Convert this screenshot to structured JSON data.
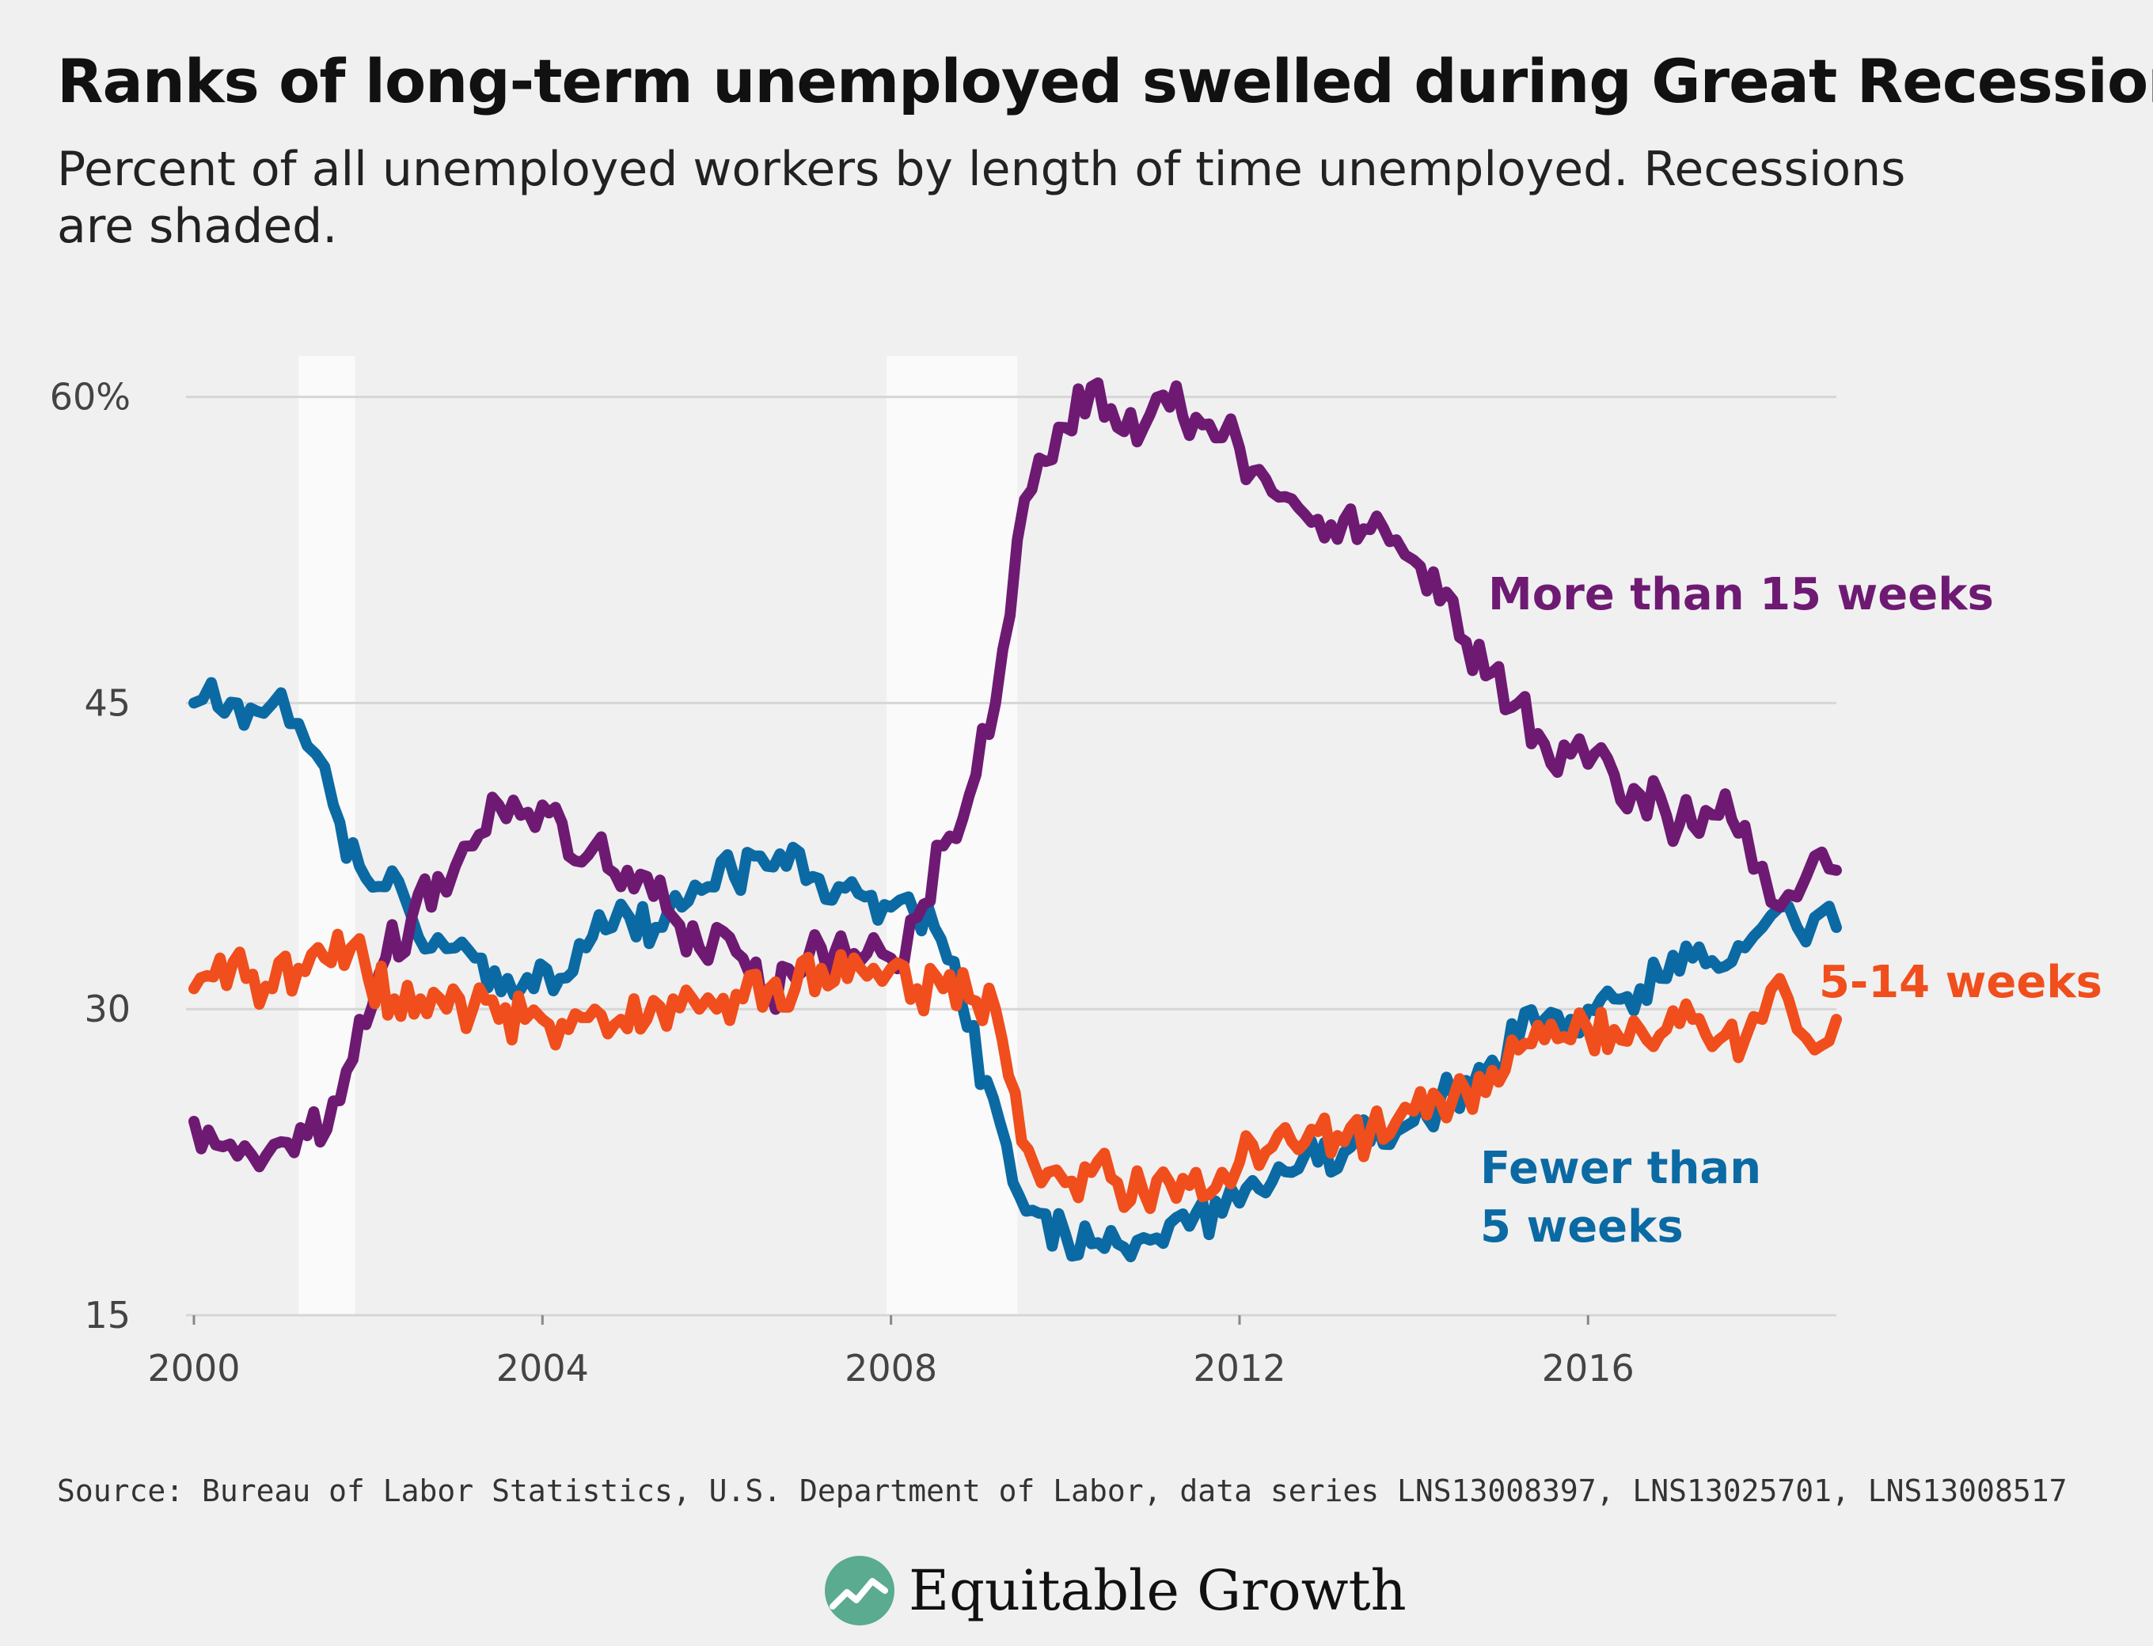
{
  "chart_data": {
    "type": "line",
    "title": "Ranks of long-term unemployed swelled during Great Recession",
    "subtitle": "Percent of all unemployed workers by length of time unemployed. Recessions are shaded.",
    "x_ticks": [
      "2000",
      "2004",
      "2008",
      "2012",
      "2016"
    ],
    "y_ticks": [
      "60%",
      "45",
      "30",
      "15"
    ],
    "y_tick_values": [
      60,
      45,
      30,
      15
    ],
    "xlim": [
      2000,
      2018.85
    ],
    "ylim": [
      15,
      62
    ],
    "grid": true,
    "recessions": [
      [
        2001.2,
        2001.85
      ],
      [
        2007.95,
        2009.45
      ]
    ],
    "series": [
      {
        "name": "More than 15 weeks",
        "label_lines": [
          "More than 15 weeks"
        ],
        "color": "#6e1a73",
        "x": [
          2000.0,
          2000.5,
          2001.0,
          2001.3,
          2001.6,
          2001.9,
          2002.2,
          2002.5,
          2002.8,
          2003.0,
          2003.2,
          2003.5,
          2003.75,
          2004.0,
          2004.3,
          2004.6,
          2004.9,
          2005.2,
          2005.5,
          2005.8,
          2006.0,
          2006.3,
          2006.6,
          2006.9,
          2007.2,
          2007.5,
          2007.8,
          2008.0,
          2008.3,
          2008.6,
          2008.9,
          2009.2,
          2009.45,
          2009.7,
          2010.0,
          2010.3,
          2010.6,
          2010.9,
          2011.2,
          2011.5,
          2011.8,
          2012.0,
          2012.3,
          2012.6,
          2012.9,
          2013.2,
          2013.5,
          2013.8,
          2014.0,
          2014.3,
          2014.6,
          2014.9,
          2015.2,
          2015.5,
          2015.8,
          2016.0,
          2016.3,
          2016.6,
          2016.9,
          2017.2,
          2017.5,
          2017.8,
          2018.0,
          2018.2,
          2018.4,
          2018.6,
          2018.85
        ],
        "values": [
          24.5,
          22.8,
          23.5,
          23.8,
          25.5,
          29.5,
          32.5,
          34.5,
          36.5,
          37.0,
          38.0,
          40.0,
          39.5,
          40.0,
          37.5,
          38.0,
          36.0,
          36.5,
          34.5,
          33.0,
          34.0,
          32.5,
          31.0,
          31.5,
          33.0,
          32.5,
          33.5,
          32.5,
          34.5,
          38.0,
          40.5,
          45.0,
          53.0,
          57.0,
          58.5,
          60.5,
          58.5,
          58.5,
          59.5,
          59.0,
          58.0,
          57.5,
          56.0,
          55.0,
          54.0,
          54.0,
          53.5,
          53.0,
          52.0,
          50.0,
          48.0,
          46.5,
          45.0,
          43.0,
          42.5,
          42.0,
          41.5,
          40.5,
          39.5,
          39.0,
          39.5,
          39.0,
          37.0,
          35.0,
          35.5,
          37.5,
          36.8
        ]
      },
      {
        "name": "5-14 weeks",
        "label_lines": [
          "5-14 weeks"
        ],
        "color": "#f04e1c",
        "x": [
          2000.0,
          2000.3,
          2000.6,
          2000.9,
          2001.2,
          2001.5,
          2001.8,
          2002.0,
          2002.3,
          2002.6,
          2002.9,
          2003.2,
          2003.5,
          2003.8,
          2004.0,
          2004.3,
          2004.6,
          2004.9,
          2005.2,
          2005.5,
          2005.8,
          2006.0,
          2006.3,
          2006.6,
          2006.9,
          2007.2,
          2007.5,
          2007.8,
          2008.0,
          2008.3,
          2008.6,
          2008.9,
          2009.2,
          2009.5,
          2009.8,
          2010.0,
          2010.3,
          2010.6,
          2010.9,
          2011.2,
          2011.5,
          2011.8,
          2012.0,
          2012.3,
          2012.6,
          2012.9,
          2013.2,
          2013.5,
          2013.8,
          2014.0,
          2014.3,
          2014.6,
          2014.9,
          2015.2,
          2015.5,
          2015.8,
          2016.0,
          2016.3,
          2016.6,
          2016.9,
          2017.2,
          2017.5,
          2017.8,
          2018.0,
          2018.2,
          2018.4,
          2018.6,
          2018.85
        ],
        "values": [
          31.0,
          32.5,
          31.5,
          31.0,
          32.0,
          32.5,
          33.0,
          31.5,
          30.5,
          30.5,
          30.0,
          30.0,
          29.5,
          29.5,
          29.5,
          29.0,
          30.0,
          29.5,
          29.5,
          30.5,
          30.0,
          30.0,
          30.5,
          31.0,
          31.0,
          32.0,
          31.5,
          32.0,
          32.0,
          31.0,
          31.0,
          30.5,
          30.0,
          23.5,
          22.0,
          21.5,
          22.0,
          21.5,
          21.0,
          21.5,
          22.0,
          22.0,
          22.5,
          23.0,
          23.5,
          24.0,
          23.5,
          24.0,
          24.5,
          25.0,
          25.5,
          26.0,
          27.0,
          28.0,
          28.5,
          28.5,
          29.0,
          29.0,
          29.0,
          29.0,
          29.5,
          28.5,
          28.5,
          29.5,
          31.5,
          29.0,
          28.0,
          29.5
        ]
      },
      {
        "name": "Fewer than 5 weeks",
        "label_lines": [
          "Fewer than",
          "5 weeks"
        ],
        "color": "#0b6aa3",
        "x": [
          2000.0,
          2000.2,
          2000.5,
          2000.8,
          2001.0,
          2001.2,
          2001.4,
          2001.6,
          2001.9,
          2002.2,
          2002.5,
          2002.8,
          2003.0,
          2003.3,
          2003.6,
          2003.9,
          2004.2,
          2004.5,
          2004.8,
          2005.0,
          2005.3,
          2005.6,
          2005.9,
          2006.2,
          2006.5,
          2006.8,
          2007.1,
          2007.4,
          2007.7,
          2008.0,
          2008.2,
          2008.5,
          2008.8,
          2009.1,
          2009.4,
          2009.7,
          2010.0,
          2010.3,
          2010.6,
          2010.9,
          2011.2,
          2011.5,
          2011.8,
          2012.0,
          2012.3,
          2012.6,
          2012.9,
          2013.2,
          2013.5,
          2013.8,
          2014.0,
          2014.3,
          2014.6,
          2014.9,
          2015.2,
          2015.5,
          2015.8,
          2016.0,
          2016.3,
          2016.6,
          2016.9,
          2017.2,
          2017.5,
          2017.8,
          2018.0,
          2018.2,
          2018.4,
          2018.6,
          2018.85
        ],
        "values": [
          45.0,
          46.0,
          45.0,
          44.5,
          45.5,
          44.0,
          42.5,
          40.0,
          37.0,
          36.0,
          34.5,
          33.5,
          33.0,
          32.5,
          31.5,
          31.0,
          31.5,
          33.0,
          34.0,
          34.5,
          34.0,
          35.0,
          36.0,
          36.5,
          37.5,
          37.0,
          36.5,
          36.0,
          35.5,
          35.0,
          35.5,
          34.0,
          30.5,
          26.5,
          21.5,
          20.0,
          19.0,
          18.5,
          18.5,
          18.8,
          19.5,
          20.0,
          20.0,
          20.5,
          21.0,
          22.0,
          22.5,
          23.0,
          23.5,
          24.0,
          24.5,
          25.5,
          26.5,
          27.5,
          28.5,
          29.5,
          29.5,
          30.0,
          30.5,
          31.0,
          31.5,
          32.5,
          32.0,
          33.0,
          34.0,
          35.0,
          34.0,
          34.5,
          34.0
        ]
      }
    ]
  },
  "source": "Source: Bureau of Labor Statistics, U.S. Department of Labor, data series LNS13008397, LNS13025701, LNS13008517",
  "brand": {
    "name": "Equitable Growth",
    "logo_icon": "chart-arrow-icon",
    "logo_color": "#5aab90"
  }
}
